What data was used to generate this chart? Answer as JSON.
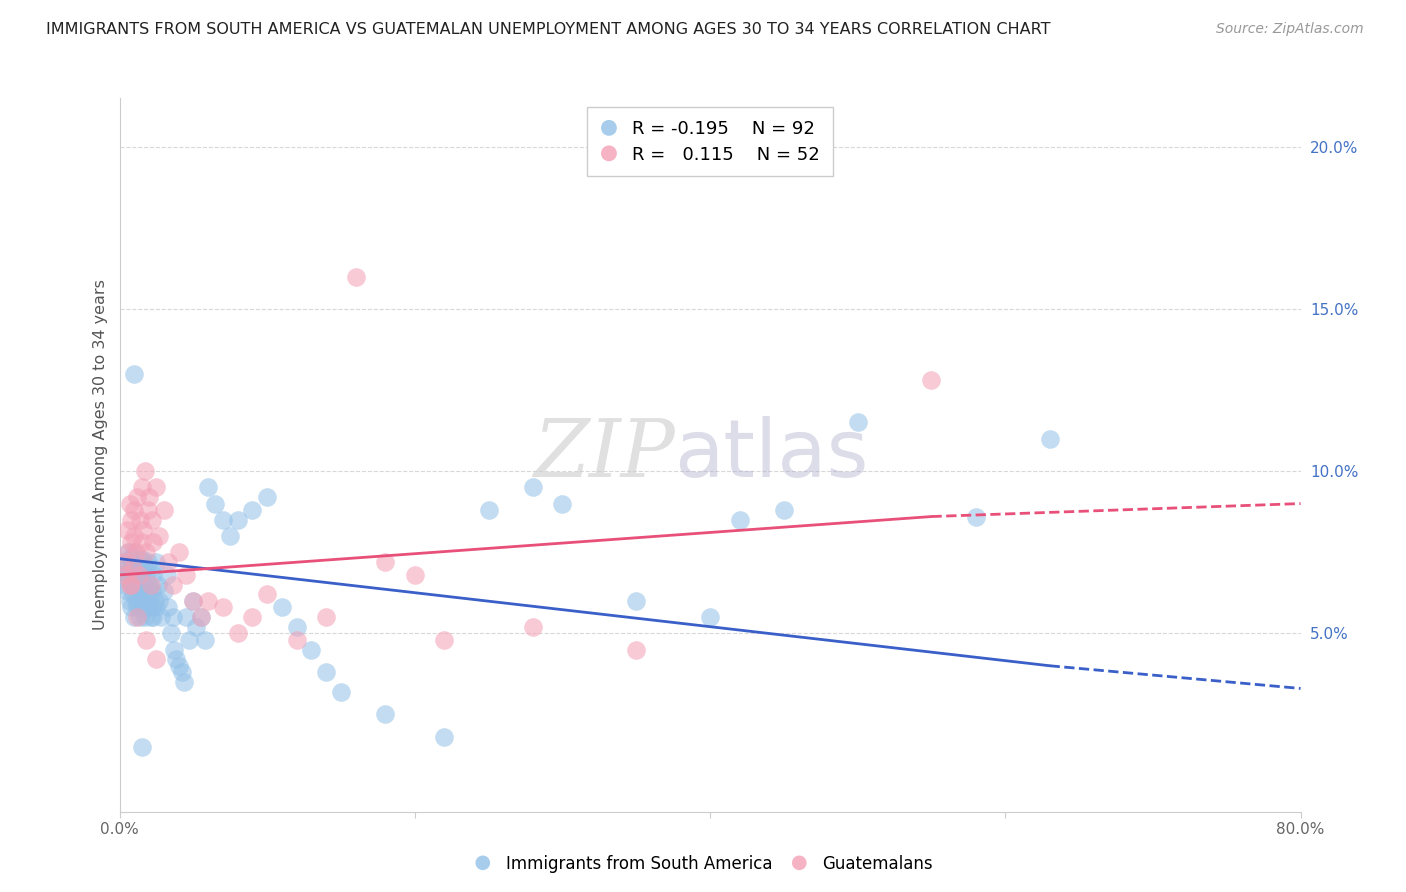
{
  "title": "IMMIGRANTS FROM SOUTH AMERICA VS GUATEMALAN UNEMPLOYMENT AMONG AGES 30 TO 34 YEARS CORRELATION CHART",
  "source": "Source: ZipAtlas.com",
  "ylabel": "Unemployment Among Ages 30 to 34 years",
  "xlim": [
    0,
    0.8
  ],
  "ylim": [
    -0.005,
    0.215
  ],
  "xticks": [
    0.0,
    0.2,
    0.4,
    0.6,
    0.8
  ],
  "xtick_labels": [
    "0.0%",
    "",
    "",
    "",
    "80.0%"
  ],
  "yticks_right": [
    0.05,
    0.1,
    0.15,
    0.2
  ],
  "ytick_labels_right": [
    "5.0%",
    "10.0%",
    "15.0%",
    "20.0%"
  ],
  "background_color": "#ffffff",
  "blue_color": "#92C0E8",
  "pink_color": "#F4A0B5",
  "blue_line_color": "#3A5FC8",
  "pink_line_color": "#E8507A",
  "legend_R_blue": "-0.195",
  "legend_N_blue": "92",
  "legend_R_pink": "0.115",
  "legend_N_pink": "52",
  "grid_color": "#d8d8d8",
  "blue_scatter_x": [
    0.002,
    0.003,
    0.004,
    0.005,
    0.005,
    0.006,
    0.006,
    0.007,
    0.007,
    0.008,
    0.008,
    0.008,
    0.009,
    0.009,
    0.01,
    0.01,
    0.01,
    0.011,
    0.011,
    0.012,
    0.012,
    0.013,
    0.013,
    0.014,
    0.014,
    0.015,
    0.015,
    0.015,
    0.016,
    0.016,
    0.017,
    0.017,
    0.018,
    0.018,
    0.019,
    0.019,
    0.02,
    0.02,
    0.021,
    0.021,
    0.022,
    0.022,
    0.023,
    0.023,
    0.024,
    0.025,
    0.025,
    0.026,
    0.027,
    0.028,
    0.03,
    0.032,
    0.033,
    0.035,
    0.036,
    0.037,
    0.038,
    0.04,
    0.042,
    0.044,
    0.045,
    0.047,
    0.05,
    0.052,
    0.055,
    0.058,
    0.06,
    0.065,
    0.07,
    0.075,
    0.08,
    0.09,
    0.1,
    0.11,
    0.12,
    0.13,
    0.14,
    0.15,
    0.18,
    0.22,
    0.25,
    0.28,
    0.3,
    0.35,
    0.4,
    0.42,
    0.45,
    0.5,
    0.58,
    0.63,
    0.01,
    0.015
  ],
  "blue_scatter_y": [
    0.068,
    0.072,
    0.065,
    0.07,
    0.063,
    0.075,
    0.068,
    0.06,
    0.073,
    0.065,
    0.07,
    0.058,
    0.062,
    0.072,
    0.068,
    0.055,
    0.075,
    0.06,
    0.065,
    0.07,
    0.058,
    0.063,
    0.068,
    0.055,
    0.073,
    0.06,
    0.067,
    0.073,
    0.058,
    0.065,
    0.07,
    0.055,
    0.063,
    0.068,
    0.058,
    0.072,
    0.06,
    0.065,
    0.055,
    0.07,
    0.058,
    0.063,
    0.068,
    0.055,
    0.06,
    0.072,
    0.058,
    0.065,
    0.06,
    0.055,
    0.063,
    0.068,
    0.058,
    0.05,
    0.055,
    0.045,
    0.042,
    0.04,
    0.038,
    0.035,
    0.055,
    0.048,
    0.06,
    0.052,
    0.055,
    0.048,
    0.095,
    0.09,
    0.085,
    0.08,
    0.085,
    0.088,
    0.092,
    0.058,
    0.052,
    0.045,
    0.038,
    0.032,
    0.025,
    0.018,
    0.088,
    0.095,
    0.09,
    0.06,
    0.055,
    0.085,
    0.088,
    0.115,
    0.086,
    0.11,
    0.13,
    0.015
  ],
  "pink_scatter_x": [
    0.003,
    0.004,
    0.005,
    0.006,
    0.007,
    0.007,
    0.008,
    0.008,
    0.009,
    0.01,
    0.01,
    0.011,
    0.012,
    0.013,
    0.014,
    0.015,
    0.015,
    0.016,
    0.017,
    0.018,
    0.019,
    0.02,
    0.021,
    0.022,
    0.023,
    0.025,
    0.027,
    0.03,
    0.033,
    0.036,
    0.04,
    0.045,
    0.05,
    0.055,
    0.06,
    0.07,
    0.08,
    0.09,
    0.1,
    0.12,
    0.14,
    0.16,
    0.18,
    0.2,
    0.22,
    0.28,
    0.008,
    0.012,
    0.018,
    0.025,
    0.35,
    0.55
  ],
  "pink_scatter_y": [
    0.072,
    0.068,
    0.082,
    0.075,
    0.09,
    0.065,
    0.078,
    0.085,
    0.07,
    0.08,
    0.088,
    0.075,
    0.092,
    0.068,
    0.085,
    0.078,
    0.095,
    0.082,
    0.1,
    0.075,
    0.088,
    0.092,
    0.065,
    0.085,
    0.078,
    0.095,
    0.08,
    0.088,
    0.072,
    0.065,
    0.075,
    0.068,
    0.06,
    0.055,
    0.06,
    0.058,
    0.05,
    0.055,
    0.062,
    0.048,
    0.055,
    0.16,
    0.072,
    0.068,
    0.048,
    0.052,
    0.065,
    0.055,
    0.048,
    0.042,
    0.045,
    0.128
  ],
  "watermark_zip": "ZIP",
  "watermark_atlas": "atlas",
  "blue_trend_x_start": 0.0,
  "blue_trend_x_solid_end": 0.63,
  "blue_trend_x_end": 0.8,
  "blue_trend_y_start": 0.073,
  "blue_trend_y_solid_end": 0.04,
  "blue_trend_y_end": 0.033,
  "pink_trend_x_start": 0.0,
  "pink_trend_x_solid_end": 0.55,
  "pink_trend_x_end": 0.8,
  "pink_trend_y_start": 0.068,
  "pink_trend_y_solid_end": 0.086,
  "pink_trend_y_end": 0.09
}
